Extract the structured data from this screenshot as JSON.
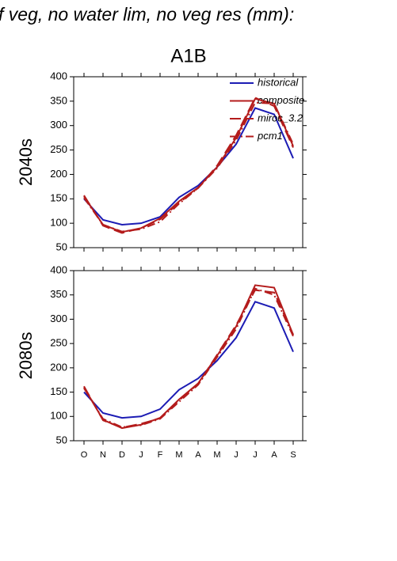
{
  "chart_data": [
    {
      "type": "line",
      "title": "f veg, no water lim, no veg res (mm):",
      "subtitle": "A1B",
      "ylabel": "2040s",
      "categories": [
        null,
        null,
        null,
        null,
        null,
        null,
        null,
        null,
        null,
        null,
        null,
        null
      ],
      "ylim": [
        50,
        400
      ],
      "yticks": [
        50,
        100,
        150,
        200,
        250,
        300,
        350,
        400
      ],
      "legend": "upper right",
      "series": [
        {
          "name": "historical",
          "color": "#1c1cb4",
          "dash": "solid",
          "values": [
            150,
            107,
            97,
            100,
            113,
            153,
            177,
            215,
            262,
            336,
            323,
            233
          ]
        },
        {
          "name": "composite",
          "color": "#b41c1c",
          "dash": "solid",
          "values": [
            155,
            97,
            82,
            90,
            110,
            145,
            173,
            215,
            275,
            355,
            345,
            258
          ]
        },
        {
          "name": "miroc_3.2",
          "color": "#b41c1c",
          "dash": "longdash",
          "values": [
            157,
            95,
            80,
            90,
            108,
            142,
            172,
            218,
            280,
            357,
            340,
            255
          ]
        },
        {
          "name": "pcm1",
          "color": "#b41c1c",
          "dash": "dashdot",
          "values": [
            152,
            97,
            83,
            88,
            103,
            140,
            172,
            213,
            270,
            347,
            345,
            262
          ]
        }
      ]
    },
    {
      "type": "line",
      "ylabel": "2080s",
      "categories": [
        "O",
        "N",
        "D",
        "J",
        "F",
        "M",
        "A",
        "M",
        "J",
        "J",
        "A",
        "S"
      ],
      "ylim": [
        50,
        400
      ],
      "yticks": [
        50,
        100,
        150,
        200,
        250,
        300,
        350,
        400
      ],
      "series": [
        {
          "color": "#1c1cb4",
          "dash": "solid",
          "values": [
            150,
            107,
            97,
            100,
            115,
            155,
            178,
            215,
            262,
            336,
            323,
            233
          ]
        },
        {
          "color": "#b41c1c",
          "dash": "solid",
          "values": [
            160,
            93,
            76,
            83,
            97,
            135,
            168,
            225,
            285,
            370,
            365,
            268
          ]
        },
        {
          "color": "#b41c1c",
          "dash": "longdash",
          "values": [
            162,
            92,
            77,
            85,
            96,
            133,
            167,
            227,
            288,
            360,
            355,
            268
          ]
        },
        {
          "color": "#b41c1c",
          "dash": "dashdot",
          "values": [
            158,
            95,
            78,
            82,
            95,
            130,
            165,
            222,
            280,
            363,
            350,
            265
          ]
        }
      ]
    }
  ]
}
